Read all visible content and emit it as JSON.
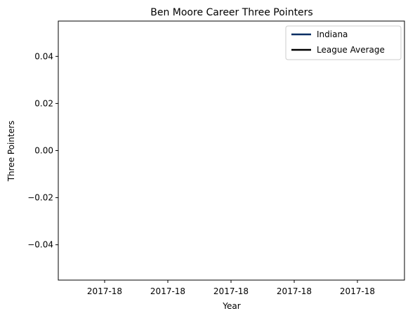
{
  "chart_data": {
    "type": "line",
    "title": "Ben Moore  Career Three Pointers",
    "xlabel": "Year",
    "ylabel": "Three Pointers",
    "x_tick_labels": [
      "2017-18",
      "2017-18",
      "2017-18",
      "2017-18",
      "2017-18"
    ],
    "y_ticks": [
      -0.04,
      -0.02,
      0.0,
      0.02,
      0.04
    ],
    "y_tick_labels": [
      "−0.04",
      "−0.02",
      "0.00",
      "0.02",
      "0.04"
    ],
    "ylim": [
      -0.055,
      0.055
    ],
    "grid": false,
    "legend_position": "top-right",
    "series": [
      {
        "name": "Indiana",
        "color": "#002d62",
        "values": []
      },
      {
        "name": "League Average",
        "color": "#000000",
        "values": []
      }
    ]
  }
}
